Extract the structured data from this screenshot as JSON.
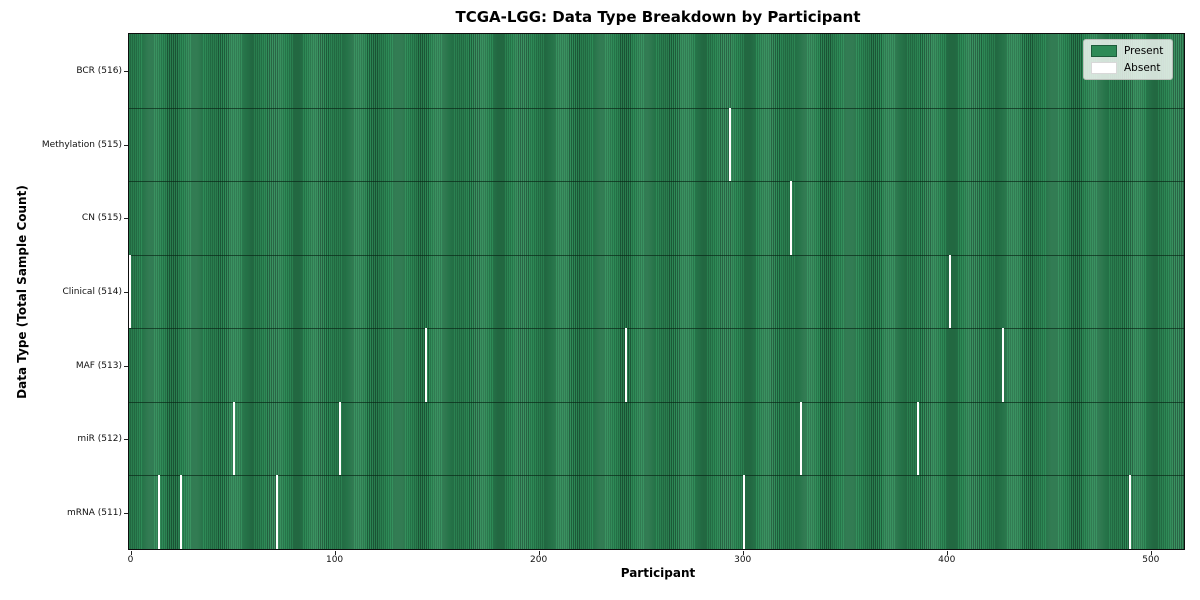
{
  "figure": {
    "title": "TCGA-LGG: Data Type Breakdown by Participant",
    "xlabel": "Participant",
    "ylabel": "Data Type (Total Sample Count)"
  },
  "legend": {
    "present_label": "Present",
    "absent_label": "Absent",
    "position": "upper right"
  },
  "colors": {
    "present": "#2e8b57",
    "present_edge": "#1d5c3a",
    "absent": "#ffffff",
    "row_boundary": "rgba(8,35,20,0.65)",
    "spine": "#0d0d0d"
  },
  "chart_data": {
    "type": "heatmap",
    "title": "TCGA-LGG: Data Type Breakdown by Participant",
    "xlabel": "Participant",
    "ylabel": "Data Type (Total Sample Count)",
    "x_ticks": [
      0,
      100,
      200,
      300,
      400,
      500
    ],
    "x_range": [
      -0.5,
      516.5
    ],
    "total_participants": 516,
    "grid": false,
    "legend_entries": [
      "Present",
      "Absent"
    ],
    "legend_position": "upper right",
    "rows": [
      {
        "label": "BCR (516)",
        "data_type": "BCR",
        "present_count": 516,
        "absent_participants": []
      },
      {
        "label": "Methylation (515)",
        "data_type": "Methylation",
        "present_count": 515,
        "absent_participants": [
          294
        ]
      },
      {
        "label": "CN (515)",
        "data_type": "CN",
        "present_count": 515,
        "absent_participants": [
          324
        ]
      },
      {
        "label": "Clinical (514)",
        "data_type": "Clinical",
        "present_count": 514,
        "absent_participants": [
          0,
          402
        ]
      },
      {
        "label": "MAF (513)",
        "data_type": "MAF",
        "present_count": 513,
        "absent_participants": [
          145,
          243,
          428
        ]
      },
      {
        "label": "miR (512)",
        "data_type": "miR",
        "present_count": 512,
        "absent_participants": [
          51,
          103,
          329,
          386
        ]
      },
      {
        "label": "mRNA (511)",
        "data_type": "mRNA",
        "present_count": 511,
        "absent_participants": [
          14,
          25,
          72,
          301,
          490
        ]
      }
    ]
  }
}
